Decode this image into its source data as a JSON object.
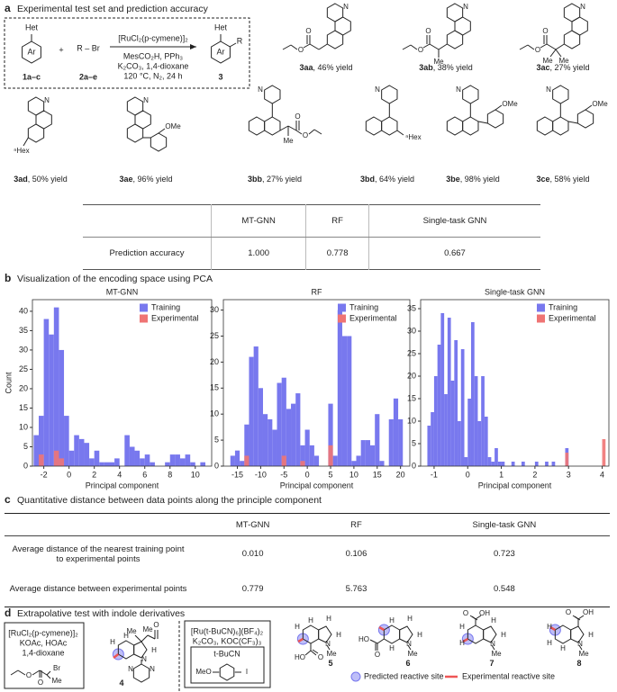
{
  "panels": [
    {
      "letter": "a",
      "title": "Experimental test set and prediction accuracy"
    },
    {
      "letter": "b",
      "title": "Visualization of the encoding space using PCA"
    },
    {
      "letter": "c",
      "title": "Quantitative distance between data points along the principle component"
    },
    {
      "letter": "d",
      "title": "Extrapolative test with indole derivatives"
    }
  ],
  "reaction": {
    "reactant_top": "Het",
    "reactant_ring": "Ar",
    "reactant_label": "1a–c",
    "plus": "+",
    "reagent": "R – Br",
    "reagent_label": "2a–e",
    "catalyst": "[RuCl₂(p-cymene)]₂",
    "conditions": [
      "MesCO₂H, PPh₃",
      "K₂CO₃, 1,4-dioxane",
      "120 °C, N₂, 24 h"
    ],
    "product_top": "Het",
    "product_ring": "Ar",
    "product_r": "R",
    "product_label": "3"
  },
  "compounds": [
    {
      "id": "3aa",
      "caption": ", 46% yield",
      "atoms": [
        "N",
        "O",
        "O"
      ]
    },
    {
      "id": "3ab",
      "caption": ", 38% yield",
      "atoms": [
        "N",
        "O",
        "O",
        "Me"
      ]
    },
    {
      "id": "3ac",
      "caption": ", 27% yield",
      "atoms": [
        "N",
        "O",
        "O",
        "Me",
        "Me"
      ]
    },
    {
      "id": "3ad",
      "caption": ", 50% yield",
      "atoms": [
        "N",
        "ⁿHex"
      ]
    },
    {
      "id": "3ae",
      "caption": ", 96% yield",
      "atoms": [
        "N",
        "OMe"
      ]
    },
    {
      "id": "3bb",
      "caption": ", 27% yield",
      "atoms": [
        "N",
        "O",
        "O",
        "Me"
      ]
    },
    {
      "id": "3bd",
      "caption": ", 64% yield",
      "atoms": [
        "N",
        "ⁿHex"
      ]
    },
    {
      "id": "3be",
      "caption": ", 98% yield",
      "atoms": [
        "N",
        "OMe"
      ]
    },
    {
      "id": "3ce",
      "caption": ", 58% yield",
      "atoms": [
        "N",
        "OMe"
      ]
    }
  ],
  "table_a": {
    "header": [
      "MT-GNN",
      "RF",
      "Single-task GNN"
    ],
    "rows": [
      {
        "label": "Prediction accuracy",
        "values": [
          "1.000",
          "0.778",
          "0.667"
        ]
      }
    ]
  },
  "chart_data": [
    {
      "type": "histogram",
      "title": "MT-GNN",
      "x_label": "Principal component",
      "y_label": "Count",
      "bins": [
        -2.8,
        -2.4,
        -2,
        -1.6,
        -1.2,
        -0.8,
        -0.4,
        0,
        0.4,
        0.8,
        1.2,
        1.6,
        2,
        2.4,
        2.8,
        3.2,
        3.6,
        4,
        4.4,
        4.8,
        5.2,
        5.6,
        6,
        6.4,
        6.8,
        7.2,
        7.6,
        8,
        8.4,
        8.8,
        9.2,
        9.6,
        10,
        10.4,
        10.8
      ],
      "series": [
        {
          "name": "Training",
          "color": "#7878ee",
          "values": [
            8,
            13,
            38,
            34,
            41,
            30,
            13,
            4,
            8,
            7,
            6,
            2,
            4,
            1,
            1,
            1,
            2,
            0,
            8,
            5,
            4,
            2,
            3,
            1,
            0,
            0,
            1,
            3,
            3,
            2,
            3,
            1,
            0,
            1
          ]
        },
        {
          "name": "Experimental",
          "color": "#ef7474",
          "values": [
            0,
            3,
            0,
            0,
            4,
            2,
            0,
            0,
            0,
            0,
            0,
            0,
            0,
            0,
            0,
            0,
            0,
            0,
            0,
            0,
            0,
            0,
            0,
            0,
            0,
            0,
            0,
            0,
            0,
            0,
            0,
            0,
            0,
            0
          ]
        }
      ],
      "xlim": [
        -2.9,
        11.3
      ],
      "ylim": [
        0,
        43
      ],
      "xticks": [
        -2,
        0,
        2,
        4,
        6,
        8,
        10
      ],
      "yticks": [
        0,
        5,
        10,
        15,
        20,
        25,
        30,
        35,
        40
      ],
      "legend": "upper right"
    },
    {
      "type": "histogram",
      "title": "RF",
      "x_label": "Principal component",
      "bins": [
        -16.5,
        -15.5,
        -14.5,
        -13.5,
        -12.5,
        -11.5,
        -10.5,
        -9.5,
        -8.5,
        -7.5,
        -6.5,
        -5.5,
        -4.5,
        -3.5,
        -2.5,
        -1.5,
        -0.5,
        0.5,
        1.5,
        2.5,
        3.5,
        4.5,
        5.5,
        6.5,
        7.5,
        8.5,
        9.5,
        10.5,
        11.5,
        12.5,
        13.5,
        14.5,
        15.5,
        16.5,
        17.5,
        18.5,
        19.5,
        20.5
      ],
      "series": [
        {
          "name": "Training",
          "color": "#7878ee",
          "values": [
            2,
            3,
            1,
            8,
            21,
            23,
            15,
            10,
            9,
            7,
            16,
            17,
            11,
            12,
            14,
            4,
            7,
            4,
            2,
            0,
            0,
            12,
            2,
            30,
            25,
            25,
            1,
            2,
            5,
            5,
            4,
            10,
            1,
            0,
            9,
            13,
            9
          ]
        },
        {
          "name": "Experimental",
          "color": "#ef7474",
          "values": [
            0,
            0,
            0,
            2,
            0,
            0,
            0,
            0,
            0,
            0,
            0,
            2,
            0,
            0,
            0,
            1,
            0,
            0,
            0,
            0,
            0,
            4,
            0,
            0,
            0,
            0,
            0,
            0,
            0,
            0,
            0,
            0,
            0,
            0,
            0,
            0,
            0
          ]
        }
      ],
      "xlim": [
        -18,
        22
      ],
      "ylim": [
        0,
        32
      ],
      "xticks": [
        -15,
        -10,
        -5,
        0,
        5,
        10,
        15,
        20
      ],
      "yticks": [
        0,
        5,
        10,
        15,
        20,
        25,
        30
      ],
      "legend": "upper right"
    },
    {
      "type": "histogram",
      "title": "Single-task GNN",
      "x_label": "Principal component",
      "bins": [
        -1.2,
        -1.1,
        -1.0,
        -0.9,
        -0.8,
        -0.7,
        -0.6,
        -0.5,
        -0.4,
        -0.3,
        -0.2,
        -0.1,
        0,
        0.1,
        0.2,
        0.3,
        0.4,
        0.5,
        0.6,
        0.7,
        0.8,
        0.9,
        1.0,
        1.1,
        1.2,
        1.3,
        1.4,
        1.5,
        1.6,
        1.7,
        1.8,
        1.9,
        2.0,
        2.1,
        2.2,
        2.3,
        2.4,
        2.5,
        2.6,
        2.7,
        2.8,
        2.9,
        3.0,
        3.1,
        3.2,
        3.3,
        3.4,
        3.5,
        3.6,
        3.7,
        3.8,
        3.9,
        4.0,
        4.1
      ],
      "series": [
        {
          "name": "Training",
          "color": "#7878ee",
          "values": [
            9,
            12,
            20,
            27,
            34,
            16,
            33,
            19,
            28,
            10,
            26,
            2,
            15,
            32,
            20,
            10,
            20,
            11,
            2,
            1,
            4,
            1,
            1,
            0,
            0,
            1,
            0,
            0,
            1,
            0,
            0,
            0,
            1,
            0,
            0,
            1,
            0,
            1,
            0,
            0,
            0,
            4,
            0,
            0,
            0,
            0,
            0,
            0,
            0,
            0,
            0,
            0,
            0
          ]
        },
        {
          "name": "Experimental",
          "color": "#ef7474",
          "values": [
            0,
            0,
            0,
            0,
            0,
            0,
            0,
            0,
            0,
            0,
            0,
            0,
            0,
            0,
            0,
            0,
            0,
            0,
            0,
            0,
            0,
            0,
            0,
            0,
            0,
            0,
            0,
            0,
            0,
            0,
            0,
            0,
            0,
            0,
            0,
            0,
            0,
            0,
            0,
            0,
            0,
            3,
            0,
            0,
            0,
            0,
            0,
            0,
            0,
            0,
            0,
            0,
            6
          ]
        }
      ],
      "xlim": [
        -1.4,
        4.2
      ],
      "ylim": [
        0,
        37
      ],
      "xticks": [
        -1,
        0,
        1,
        2,
        3,
        4
      ],
      "yticks": [
        0,
        5,
        10,
        15,
        20,
        25,
        30,
        35
      ],
      "legend": "upper right"
    }
  ],
  "table_c": {
    "header": [
      "MT-GNN",
      "RF",
      "Single-task GNN"
    ],
    "rows": [
      {
        "label": "Average distance of the nearest training point to experimental points",
        "values": [
          "0.010",
          "0.106",
          "0.723"
        ]
      },
      {
        "label": "Average distance between experimental points",
        "values": [
          "0.779",
          "5.763",
          "0.548"
        ]
      }
    ]
  },
  "d_conditions_1": {
    "lines": [
      "[RuCl₂(p-cymene)]₂",
      "KOAc, HOAc",
      "1,4-dioxane"
    ],
    "atoms": [
      "O",
      "O",
      "Br",
      "Me"
    ]
  },
  "d_conditions_2": {
    "lines": [
      "[Ru(t-BuCN)₆](BF₄)₂",
      "K₂CO₃, KOC(CF₃)₃",
      "t-BuCN"
    ],
    "atoms": [
      "MeO",
      "I"
    ]
  },
  "d_compounds": [
    {
      "id": "4",
      "atoms": [
        "Me",
        "Me",
        "O",
        "H",
        "H",
        "H",
        "N",
        "N",
        "N"
      ]
    },
    {
      "id": "5",
      "atoms": [
        "H",
        "H",
        "H",
        "H",
        "N",
        "Me",
        "HO",
        "O"
      ]
    },
    {
      "id": "6",
      "atoms": [
        "H",
        "H",
        "H",
        "H",
        "N",
        "Me",
        "HO",
        "O"
      ]
    },
    {
      "id": "7",
      "atoms": [
        "O",
        "OH",
        "H",
        "H",
        "H",
        "H",
        "N",
        "Me"
      ]
    },
    {
      "id": "8",
      "atoms": [
        "O",
        "OH",
        "H",
        "H",
        "H",
        "H",
        "N",
        "Me"
      ]
    }
  ],
  "d_legend": [
    "Predicted reactive site",
    "Experimental reactive site"
  ]
}
